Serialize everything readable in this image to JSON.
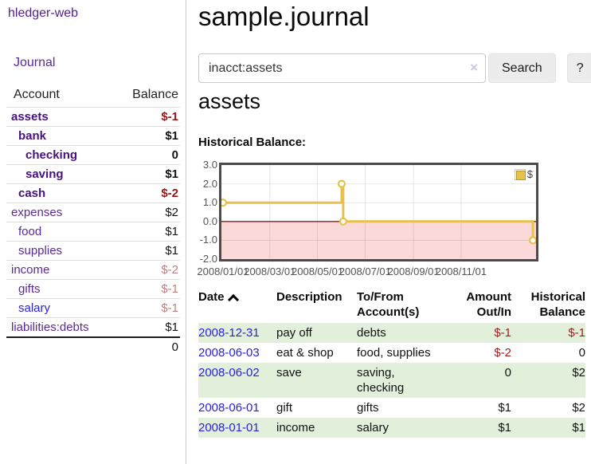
{
  "app": {
    "brand": "hledger-web"
  },
  "sidebar": {
    "nav": [
      {
        "label": "Journal"
      }
    ],
    "accounts_table": {
      "headers": [
        "Account",
        "Balance"
      ],
      "rows": [
        {
          "name": "assets",
          "level": 1,
          "bold": true,
          "balance": "$-1",
          "neg": "strong"
        },
        {
          "name": "bank",
          "level": 2,
          "bold": true,
          "balance": "$1"
        },
        {
          "name": "checking",
          "level": 3,
          "bold": true,
          "balance": "0"
        },
        {
          "name": "saving",
          "level": 3,
          "bold": true,
          "balance": "$1"
        },
        {
          "name": "cash",
          "level": 2,
          "bold": true,
          "balance": "$-2",
          "neg": "strong"
        },
        {
          "name": "expenses",
          "level": 1,
          "balance": "$2"
        },
        {
          "name": "food",
          "level": 2,
          "balance": "$1"
        },
        {
          "name": "supplies",
          "level": 2,
          "balance": "$1"
        },
        {
          "name": "income",
          "level": 1,
          "balance": "$-2",
          "neg": "soft"
        },
        {
          "name": "gifts",
          "level": 2,
          "balance": "$-1",
          "neg": "soft"
        },
        {
          "name": "salary",
          "level": 2,
          "balance": "$-1",
          "neg": "soft",
          "blue": true
        },
        {
          "name": "liabilities:debts",
          "level": 1,
          "balance": "$1"
        }
      ],
      "total": "0"
    }
  },
  "main": {
    "title": "sample.journal",
    "search": {
      "value": "inacct:assets",
      "clear_icon": "×",
      "button_label": "Search",
      "help_label": "?"
    },
    "account_heading": "assets",
    "chart_label": "Historical Balance:"
  },
  "chart_data": {
    "type": "line",
    "step": true,
    "title": "Historical Balance",
    "series": [
      {
        "name": "$",
        "color": "#e8c14a",
        "points": [
          [
            "2008-01-01",
            1
          ],
          [
            "2008-06-01",
            2
          ],
          [
            "2008-06-03",
            0
          ],
          [
            "2008-12-31",
            -1
          ]
        ]
      }
    ],
    "x_ticks": [
      "2008/01/01",
      "2008/03/01",
      "2008/05/01",
      "2008/07/01",
      "2008/09/01",
      "2008/11/01"
    ],
    "y_ticks": [
      3.0,
      2.0,
      1.0,
      0.0,
      -1.0,
      -2.0
    ],
    "ylim": [
      -2,
      3
    ],
    "grid": true,
    "negative_fill": "#fbd9d9",
    "zero_line_color": "#8f1a1a",
    "legend": {
      "label": "$",
      "position": "top-right"
    }
  },
  "register_table": {
    "headers": {
      "date": "Date",
      "description": "Description",
      "accounts": "To/From Account(s)",
      "amount": "Amount Out/In",
      "balance": "Historical Balance"
    },
    "rows": [
      {
        "date": "2008-12-31",
        "description": "pay off",
        "accounts": "debts",
        "amount": "$-1",
        "amount_neg": true,
        "balance": "$-1",
        "balance_neg": true
      },
      {
        "date": "2008-06-03",
        "description": "eat & shop",
        "accounts": "food, supplies",
        "amount": "$-2",
        "amount_neg": true,
        "balance": "0"
      },
      {
        "date": "2008-06-02",
        "description": "save",
        "accounts": "saving, checking",
        "amount": "0",
        "balance": "$2"
      },
      {
        "date": "2008-06-01",
        "description": "gift",
        "accounts": "gifts",
        "amount": "$1",
        "balance": "$2"
      },
      {
        "date": "2008-01-01",
        "description": "income",
        "accounts": "salary",
        "amount": "$1",
        "balance": "$1"
      }
    ]
  }
}
